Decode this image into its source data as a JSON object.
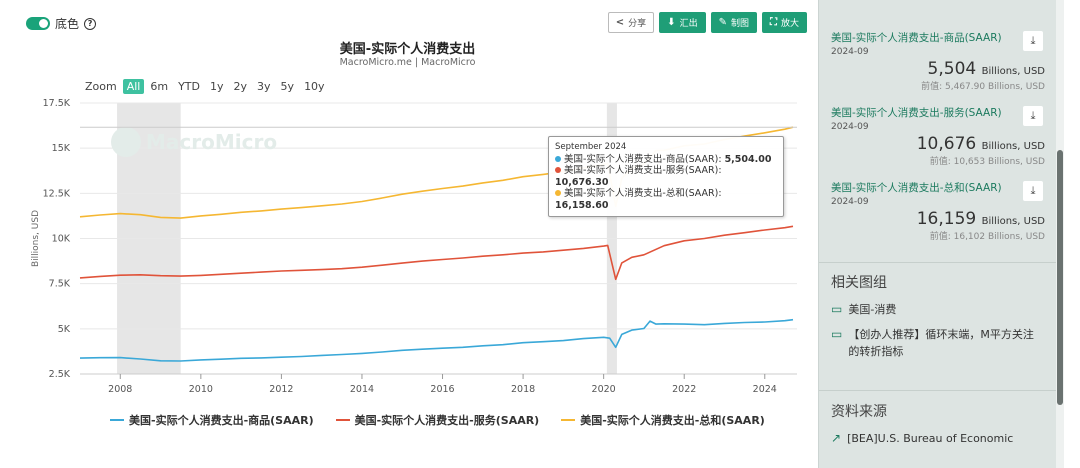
{
  "header": {
    "toggle_label": "底色",
    "toolbar": {
      "share": "分享",
      "export": "汇出",
      "draw": "制图",
      "expand": "放大"
    }
  },
  "zoom": {
    "label": "Zoom",
    "options": [
      "All",
      "6m",
      "YTD",
      "1y",
      "2y",
      "3y",
      "5y",
      "10y"
    ],
    "active": "All"
  },
  "watermark": "MacroMicro",
  "tooltip": {
    "date": "September 2024",
    "rows": [
      {
        "label": "美国-实际个人消费支出-商品(SAAR): ",
        "value": "5,504.00",
        "color": "#3aa8d8"
      },
      {
        "label": "美国-实际个人消费支出-服务(SAAR): ",
        "value": "10,676.30",
        "color": "#e0533a"
      },
      {
        "label": "美国-实际个人消费支出-总和(SAAR): ",
        "value": "16,158.60",
        "color": "#f5b732"
      }
    ]
  },
  "chart_data": {
    "type": "line",
    "title": "美国-实际个人消费支出",
    "subtitle": "MacroMicro.me | MacroMicro",
    "ylabel": "Billions, USD",
    "ylim": [
      2500,
      17500
    ],
    "yticks": [
      "2.5K",
      "5K",
      "7.5K",
      "10K",
      "12.5K",
      "15K",
      "17.5K"
    ],
    "xticks": [
      "2008",
      "2010",
      "2012",
      "2014",
      "2016",
      "2018",
      "2020",
      "2022",
      "2024"
    ],
    "xlim": [
      2007.0,
      2024.8
    ],
    "recessions": [
      [
        2007.92,
        2009.5
      ],
      [
        2020.08,
        2020.33
      ]
    ],
    "legend_position": "bottom",
    "series": [
      {
        "name": "美国-实际个人消费支出-商品(SAAR)",
        "color": "#3aa8d8",
        "points": [
          [
            2007.0,
            3380
          ],
          [
            2007.5,
            3400
          ],
          [
            2008.0,
            3410
          ],
          [
            2008.5,
            3330
          ],
          [
            2009.0,
            3230
          ],
          [
            2009.5,
            3220
          ],
          [
            2010.0,
            3280
          ],
          [
            2010.5,
            3320
          ],
          [
            2011.0,
            3370
          ],
          [
            2011.5,
            3390
          ],
          [
            2012.0,
            3430
          ],
          [
            2012.5,
            3470
          ],
          [
            2013.0,
            3530
          ],
          [
            2013.5,
            3580
          ],
          [
            2014.0,
            3640
          ],
          [
            2014.5,
            3720
          ],
          [
            2015.0,
            3810
          ],
          [
            2015.5,
            3870
          ],
          [
            2016.0,
            3930
          ],
          [
            2016.5,
            3980
          ],
          [
            2017.0,
            4060
          ],
          [
            2017.5,
            4120
          ],
          [
            2018.0,
            4230
          ],
          [
            2018.5,
            4290
          ],
          [
            2019.0,
            4350
          ],
          [
            2019.5,
            4460
          ],
          [
            2020.0,
            4530
          ],
          [
            2020.15,
            4480
          ],
          [
            2020.3,
            3980
          ],
          [
            2020.45,
            4690
          ],
          [
            2020.7,
            4930
          ],
          [
            2021.0,
            5020
          ],
          [
            2021.15,
            5430
          ],
          [
            2021.3,
            5260
          ],
          [
            2021.5,
            5280
          ],
          [
            2022.0,
            5260
          ],
          [
            2022.5,
            5230
          ],
          [
            2023.0,
            5300
          ],
          [
            2023.5,
            5350
          ],
          [
            2024.0,
            5380
          ],
          [
            2024.5,
            5450
          ],
          [
            2024.7,
            5504
          ]
        ]
      },
      {
        "name": "美国-实际个人消费支出-服务(SAAR)",
        "color": "#e0533a",
        "points": [
          [
            2007.0,
            7820
          ],
          [
            2007.5,
            7900
          ],
          [
            2008.0,
            7970
          ],
          [
            2008.5,
            7990
          ],
          [
            2009.0,
            7940
          ],
          [
            2009.5,
            7920
          ],
          [
            2010.0,
            7960
          ],
          [
            2010.5,
            8020
          ],
          [
            2011.0,
            8080
          ],
          [
            2011.5,
            8140
          ],
          [
            2012.0,
            8200
          ],
          [
            2012.5,
            8240
          ],
          [
            2013.0,
            8280
          ],
          [
            2013.5,
            8330
          ],
          [
            2014.0,
            8410
          ],
          [
            2014.5,
            8520
          ],
          [
            2015.0,
            8640
          ],
          [
            2015.5,
            8750
          ],
          [
            2016.0,
            8840
          ],
          [
            2016.5,
            8920
          ],
          [
            2017.0,
            9020
          ],
          [
            2017.5,
            9100
          ],
          [
            2018.0,
            9190
          ],
          [
            2018.5,
            9260
          ],
          [
            2019.0,
            9350
          ],
          [
            2019.5,
            9450
          ],
          [
            2020.0,
            9580
          ],
          [
            2020.1,
            9620
          ],
          [
            2020.3,
            7740
          ],
          [
            2020.45,
            8650
          ],
          [
            2020.7,
            8960
          ],
          [
            2021.0,
            9100
          ],
          [
            2021.5,
            9600
          ],
          [
            2022.0,
            9870
          ],
          [
            2022.5,
            10000
          ],
          [
            2023.0,
            10180
          ],
          [
            2023.5,
            10320
          ],
          [
            2024.0,
            10470
          ],
          [
            2024.5,
            10600
          ],
          [
            2024.7,
            10676
          ]
        ]
      },
      {
        "name": "美国-实际个人消费支出-总和(SAAR)",
        "color": "#f5b732",
        "points": [
          [
            2007.0,
            11200
          ],
          [
            2007.5,
            11300
          ],
          [
            2008.0,
            11380
          ],
          [
            2008.5,
            11320
          ],
          [
            2009.0,
            11170
          ],
          [
            2009.5,
            11130
          ],
          [
            2010.0,
            11250
          ],
          [
            2010.5,
            11340
          ],
          [
            2011.0,
            11450
          ],
          [
            2011.5,
            11530
          ],
          [
            2012.0,
            11630
          ],
          [
            2012.5,
            11710
          ],
          [
            2013.0,
            11810
          ],
          [
            2013.5,
            11910
          ],
          [
            2014.0,
            12050
          ],
          [
            2014.5,
            12240
          ],
          [
            2015.0,
            12450
          ],
          [
            2015.5,
            12620
          ],
          [
            2016.0,
            12770
          ],
          [
            2016.5,
            12900
          ],
          [
            2017.0,
            13080
          ],
          [
            2017.5,
            13220
          ],
          [
            2018.0,
            13420
          ],
          [
            2018.5,
            13550
          ],
          [
            2019.0,
            13700
          ],
          [
            2019.5,
            13910
          ],
          [
            2020.0,
            14100
          ],
          [
            2020.1,
            14150
          ],
          [
            2020.3,
            11780
          ],
          [
            2020.45,
            13330
          ],
          [
            2020.7,
            13890
          ],
          [
            2021.0,
            14120
          ],
          [
            2021.3,
            14870
          ],
          [
            2021.5,
            14880
          ],
          [
            2022.0,
            15130
          ],
          [
            2022.5,
            15230
          ],
          [
            2023.0,
            15480
          ],
          [
            2023.5,
            15670
          ],
          [
            2024.0,
            15850
          ],
          [
            2024.5,
            16050
          ],
          [
            2024.7,
            16159
          ]
        ]
      }
    ]
  },
  "sidebar": {
    "cards": [
      {
        "name": "美国-实际个人消费支出-商品(SAAR)",
        "date": "2024-09",
        "value": "5,504",
        "unit": "Billions, USD",
        "prev": "前值: 5,467.90 Billions, USD"
      },
      {
        "name": "美国-实际个人消费支出-服务(SAAR)",
        "date": "2024-09",
        "value": "10,676",
        "unit": "Billions, USD",
        "prev": "前值: 10,653 Billions, USD"
      },
      {
        "name": "美国-实际个人消费支出-总和(SAAR)",
        "date": "2024-09",
        "value": "16,159",
        "unit": "Billions, USD",
        "prev": "前值: 16,102 Billions, USD"
      }
    ],
    "related_title": "相关图组",
    "related": [
      "美国-消费",
      "【创办人推荐】循环末端，M平方关注的转折指标"
    ],
    "source_title": "资料来源",
    "source": "[BEA]U.S. Bureau of Economic"
  }
}
